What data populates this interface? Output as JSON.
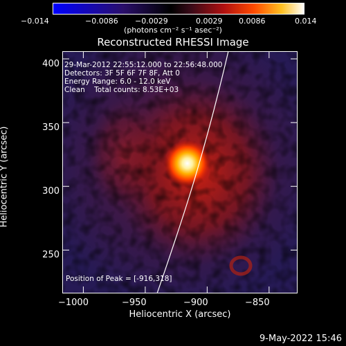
{
  "colorbar": {
    "ticks": [
      "−0.014",
      "−0.0086",
      "−0.0029",
      "0.0029",
      "0.0086",
      "0.014"
    ],
    "units": "(photons cm⁻² s⁻¹ asec⁻²)",
    "colors": [
      "#0000ff",
      "#1a0c4a",
      "#000000",
      "#4a0b1f",
      "#c01313",
      "#ff5a00",
      "#ffd020",
      "#ffffff"
    ]
  },
  "image": {
    "title": "Reconstructed RHESSI Image",
    "info_line1": "29-Mar-2012 22:55:12.000 to 22:56:48.000",
    "info_line2": "Detectors: 3F 5F 6F 7F 8F, Att 0",
    "info_line3": "Energy Range: 6.0 - 12.0 keV",
    "info_line4": "Clean    Total counts: 8.53E+03",
    "peak_label": "Position of Peak = [-916,318]",
    "peak_x": -916,
    "peak_y": 318,
    "xlim": [
      -1017,
      -827
    ],
    "ylim": [
      216,
      406
    ]
  },
  "axes": {
    "xlabel": "Heliocentric X (arcsec)",
    "ylabel": "Heliocentric Y (arcsec)",
    "xticks": [
      {
        "value": -1000,
        "label": "−1000"
      },
      {
        "value": -950,
        "label": "−950"
      },
      {
        "value": -900,
        "label": "−900"
      },
      {
        "value": -850,
        "label": "−850"
      }
    ],
    "yticks": [
      {
        "value": 250,
        "label": "250"
      },
      {
        "value": 300,
        "label": "300"
      },
      {
        "value": 350,
        "label": "350"
      },
      {
        "value": 400,
        "label": "400"
      }
    ]
  },
  "footer": {
    "timestamp": "9-May-2022 15:46"
  }
}
